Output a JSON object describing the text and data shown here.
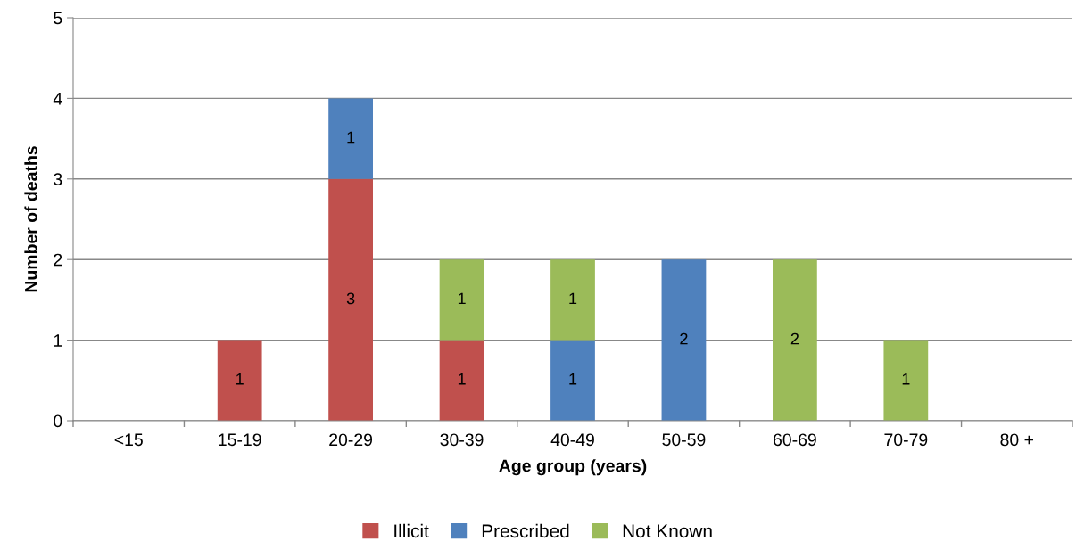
{
  "chart_data": {
    "type": "bar",
    "stacked": true,
    "xlabel": "Age group (years)",
    "ylabel": "Number of deaths",
    "categories": [
      "<15",
      "15-19",
      "20-29",
      "30-39",
      "40-49",
      "50-59",
      "60-69",
      "70-79",
      "80 +"
    ],
    "series": [
      {
        "name": "Illicit",
        "color": "#c0504d",
        "values": [
          null,
          1,
          3,
          1,
          null,
          null,
          null,
          null,
          null
        ]
      },
      {
        "name": "Prescribed",
        "color": "#4f81bd",
        "values": [
          null,
          null,
          1,
          null,
          1,
          2,
          null,
          null,
          null
        ]
      },
      {
        "name": "Not Known",
        "color": "#9bbb59",
        "values": [
          null,
          null,
          null,
          1,
          1,
          null,
          2,
          1,
          null
        ]
      }
    ],
    "ylim": [
      0,
      5
    ],
    "yticks": [
      0,
      1,
      2,
      3,
      4,
      5
    ],
    "grid": "y",
    "legend": "bottom",
    "data_labels": true
  }
}
